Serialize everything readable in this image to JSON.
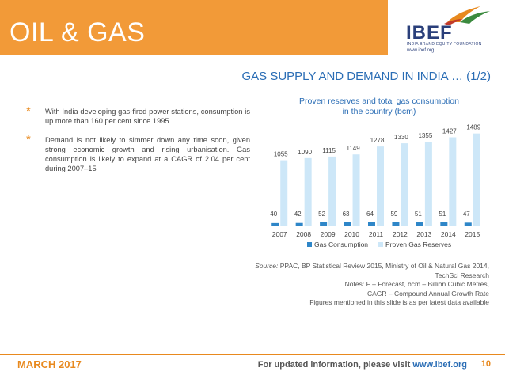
{
  "header": {
    "title": "OIL & GAS",
    "logo_text": "IBEF",
    "logo_subtitle": "INDIA BRAND EQUITY FOUNDATION",
    "logo_url": "www.ibef.org"
  },
  "section_title": "GAS SUPPLY AND DEMAND IN INDIA … (1/2)",
  "bullets": [
    "With India developing gas-fired power stations, consumption is up more than 160 per cent since 1995",
    "Demand is not likely to simmer down any time soon, given strong economic growth and rising urbanisation. Gas consumption is likely to expand at a CAGR of 2.04 per cent during 2007–15"
  ],
  "chart_title_line1": "Proven reserves and total gas consumption",
  "chart_title_line2": "in the country (bcm)",
  "chart_data": {
    "type": "bar",
    "categories": [
      "2007",
      "2008",
      "2009",
      "2010",
      "2011",
      "2012",
      "2013",
      "2014",
      "2015"
    ],
    "series": [
      {
        "name": "Gas Consumption",
        "values": [
          40,
          42,
          52,
          63,
          64,
          59,
          51,
          51,
          47
        ],
        "color": "#2e86c8"
      },
      {
        "name": "Proven Gas Reserves",
        "values": [
          1055,
          1090,
          1115,
          1149,
          1278,
          1330,
          1355,
          1427,
          1489
        ],
        "color": "#cde7f8"
      }
    ],
    "ylim": [
      0,
      1600
    ],
    "legend_position": "bottom",
    "grid": false
  },
  "notes": {
    "source_label": "Source:",
    "source_text": "PPAC, BP Statistical Review 2015, Ministry of Oil & Natural Gas 2014, TechSci Research",
    "line2": "Notes: F – Forecast, bcm – Billion Cubic Metres,",
    "line3": "CAGR – Compound Annual Growth Rate",
    "line4": "Figures mentioned in this slide is as per latest data available"
  },
  "footer": {
    "date": "MARCH 2017",
    "info_text": "For updated information, please visit ",
    "info_url": "www.ibef.org",
    "page": "10"
  },
  "colors": {
    "accent_orange": "#f29a38",
    "title_blue": "#2a6db5",
    "logo_navy": "#2a3f7a"
  }
}
